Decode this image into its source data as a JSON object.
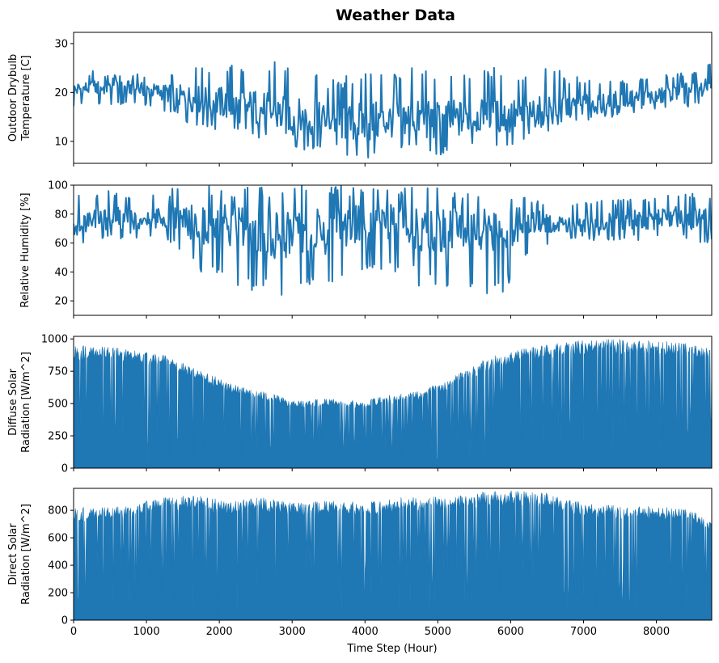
{
  "figure": {
    "title": "Weather Data",
    "xlabel": "Time Step (Hour)"
  },
  "chart_data": [
    {
      "type": "line",
      "ylabel": [
        "Outdoor Drybulb",
        "Temperature [C]"
      ],
      "xlim": [
        0,
        8760
      ],
      "ylim": [
        5.5,
        32.3
      ],
      "yticks": [
        10,
        20,
        30
      ],
      "xticks": [
        0,
        1000,
        2000,
        3000,
        4000,
        5000,
        6000,
        7000,
        8000
      ],
      "show_xtick_labels": false,
      "color": "#1f77b4",
      "series": [
        {
          "x": [
            0,
            250,
            500,
            750,
            1000,
            1250,
            1500,
            1750,
            2000,
            2250,
            2500,
            2750,
            3000,
            3250,
            3500,
            3750,
            4000,
            4250,
            4500,
            4750,
            5000,
            5250,
            5500,
            5750,
            6000,
            6250,
            6500,
            6750,
            7000,
            7250,
            7500,
            7750,
            8000,
            8250,
            8500,
            8760
          ],
          "y": [
            20.5,
            21,
            20.8,
            21,
            20.5,
            20,
            19,
            18.5,
            18,
            17,
            17,
            15.5,
            15,
            14.5,
            14.5,
            13.5,
            14,
            14,
            15,
            14.5,
            14,
            14.5,
            15,
            15,
            15,
            15.5,
            17,
            17,
            17.5,
            18,
            18.5,
            19,
            19,
            20,
            20.5,
            21
          ],
          "min": [
            17,
            17.5,
            17.5,
            17.5,
            17,
            16,
            14,
            13,
            12,
            11.5,
            11,
            9,
            8,
            8,
            8,
            7,
            6,
            8,
            8,
            8,
            7,
            8,
            9,
            9,
            9,
            10,
            12,
            13,
            14,
            15,
            15,
            16,
            16,
            17,
            17,
            17
          ],
          "max": [
            24,
            24.5,
            23.5,
            24,
            23.5,
            24,
            25,
            26,
            27,
            26,
            28,
            27,
            27,
            24,
            23,
            24,
            27,
            25,
            26,
            25,
            26,
            26,
            24,
            25,
            26,
            24,
            27,
            24,
            23,
            23,
            23,
            23,
            24,
            24,
            24.5,
            26
          ]
        }
      ]
    },
    {
      "type": "line",
      "ylabel": [
        "Relative Humidity [%]"
      ],
      "xlim": [
        0,
        8760
      ],
      "ylim": [
        10,
        100
      ],
      "yticks": [
        20,
        40,
        60,
        80,
        100
      ],
      "xticks": [
        0,
        1000,
        2000,
        3000,
        4000,
        5000,
        6000,
        7000,
        8000
      ],
      "show_xtick_labels": false,
      "color": "#1f77b4",
      "series": [
        {
          "x": [
            0,
            250,
            500,
            750,
            1000,
            1250,
            1500,
            1750,
            2000,
            2250,
            2500,
            2750,
            3000,
            3250,
            3500,
            3750,
            4000,
            4250,
            4500,
            4750,
            5000,
            5250,
            5500,
            5750,
            6000,
            6250,
            6500,
            6750,
            7000,
            7250,
            7500,
            7750,
            8000,
            8250,
            8500,
            8760
          ],
          "y": [
            72,
            74,
            78,
            76,
            77,
            78,
            75,
            73,
            72,
            68,
            70,
            66,
            68,
            67,
            68,
            70,
            72,
            72,
            74,
            70,
            68,
            70,
            68,
            70,
            72,
            74,
            74,
            74,
            73,
            74,
            76,
            76,
            76,
            78,
            77,
            76
          ],
          "min": [
            60,
            60,
            62,
            63,
            64,
            64,
            50,
            40,
            35,
            20,
            28,
            20,
            25,
            25,
            25,
            28,
            35,
            35,
            40,
            30,
            25,
            30,
            30,
            20,
            30,
            50,
            58,
            62,
            62,
            62,
            62,
            62,
            63,
            62,
            60,
            58
          ],
          "max": [
            92,
            95,
            97,
            95,
            97,
            97,
            100,
            100,
            100,
            100,
            100,
            100,
            100,
            100,
            100,
            100,
            100,
            100,
            100,
            100,
            100,
            100,
            100,
            98,
            96,
            92,
            90,
            90,
            88,
            90,
            90,
            92,
            93,
            95,
            95,
            92
          ]
        }
      ]
    },
    {
      "type": "area",
      "ylabel": [
        "Diffuse Solar",
        "Radiation [W/m^2]"
      ],
      "xlim": [
        0,
        8760
      ],
      "ylim": [
        0,
        1020
      ],
      "yticks": [
        0,
        250,
        500,
        750,
        1000
      ],
      "xticks": [
        0,
        1000,
        2000,
        3000,
        4000,
        5000,
        6000,
        7000,
        8000
      ],
      "show_xtick_labels": false,
      "color": "#1f77b4",
      "series": [
        {
          "x": [
            0,
            250,
            500,
            750,
            1000,
            1250,
            1500,
            1750,
            2000,
            2250,
            2500,
            2750,
            3000,
            3250,
            3500,
            3750,
            4000,
            4250,
            4500,
            4750,
            5000,
            5250,
            5500,
            5750,
            6000,
            6250,
            6500,
            6750,
            7000,
            7250,
            7500,
            7750,
            8000,
            8250,
            8500,
            8760
          ],
          "y": [
            950,
            945,
            940,
            920,
            905,
            880,
            820,
            750,
            700,
            640,
            600,
            580,
            520,
            530,
            545,
            530,
            520,
            560,
            580,
            600,
            660,
            720,
            800,
            870,
            900,
            940,
            960,
            980,
            990,
            1000,
            1000,
            1000,
            990,
            980,
            960,
            930
          ]
        }
      ]
    },
    {
      "type": "area",
      "ylabel": [
        "Direct Solar",
        "Radiation [W/m^2]"
      ],
      "xlim": [
        0,
        8760
      ],
      "ylim": [
        0,
        960
      ],
      "yticks": [
        0,
        200,
        400,
        600,
        800
      ],
      "xticks": [
        0,
        1000,
        2000,
        3000,
        4000,
        5000,
        6000,
        7000,
        8000
      ],
      "show_xtick_labels": true,
      "color": "#1f77b4",
      "series": [
        {
          "x": [
            0,
            250,
            500,
            750,
            1000,
            1250,
            1500,
            1750,
            2000,
            2250,
            2500,
            2750,
            3000,
            3250,
            3500,
            3750,
            4000,
            4250,
            4500,
            4750,
            5000,
            5250,
            5500,
            5750,
            6000,
            6250,
            6500,
            6750,
            7000,
            7250,
            7500,
            7750,
            8000,
            8250,
            8500,
            8760
          ],
          "y": [
            820,
            820,
            825,
            830,
            880,
            900,
            910,
            905,
            880,
            870,
            900,
            880,
            860,
            860,
            880,
            870,
            860,
            870,
            900,
            900,
            920,
            900,
            930,
            940,
            950,
            940,
            930,
            880,
            860,
            840,
            840,
            840,
            830,
            820,
            800,
            720
          ]
        }
      ]
    }
  ]
}
